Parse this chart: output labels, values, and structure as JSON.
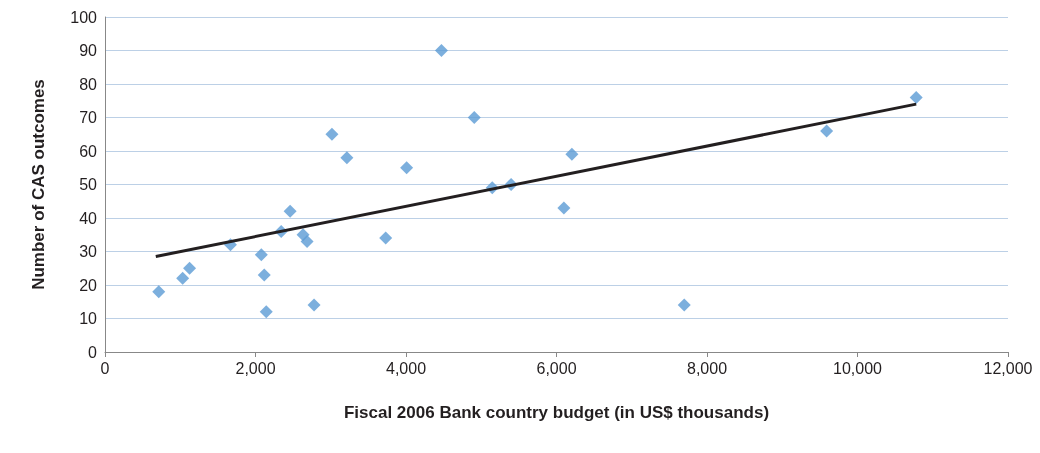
{
  "chart_data": {
    "type": "scatter",
    "xlabel": "Fiscal 2006 Bank country budget (in US$ thousands)",
    "ylabel": "Number of CAS outcomes",
    "xlim": [
      0,
      12000
    ],
    "xticks": [
      {
        "value": 0,
        "label": "0"
      },
      {
        "value": 2000,
        "label": "2,000"
      },
      {
        "value": 4000,
        "label": "4,000"
      },
      {
        "value": 6000,
        "label": "6,000"
      },
      {
        "value": 8000,
        "label": "8,000"
      },
      {
        "value": 10000,
        "label": "10,000"
      },
      {
        "value": 12000,
        "label": "12,000"
      }
    ],
    "ylim": [
      0,
      100
    ],
    "yticks": [
      0,
      10,
      20,
      30,
      40,
      50,
      60,
      70,
      80,
      90,
      100
    ],
    "grid": "y",
    "series": [
      {
        "color": "#5b9bd5",
        "marker": "diamond",
        "x": [
          714,
          1032,
          1124,
          1667,
          2077,
          2116,
          2143,
          2341,
          2460,
          2632,
          2685,
          2778,
          3016,
          3214,
          3730,
          4008,
          4471,
          4907,
          5146,
          5397,
          6098,
          6204,
          7698,
          9590,
          10780
        ],
        "values": [
          18,
          22,
          25,
          32,
          29,
          23,
          12,
          36,
          42,
          35,
          33,
          14,
          65,
          58,
          34,
          55,
          90,
          70,
          49,
          50,
          43,
          59,
          14,
          66,
          76
        ]
      },
      {
        "type": "line",
        "color": "#231f20",
        "marker": "none",
        "line_style": "solid",
        "x": [
          675,
          10780
        ],
        "values": [
          28.5,
          74
        ]
      }
    ]
  }
}
